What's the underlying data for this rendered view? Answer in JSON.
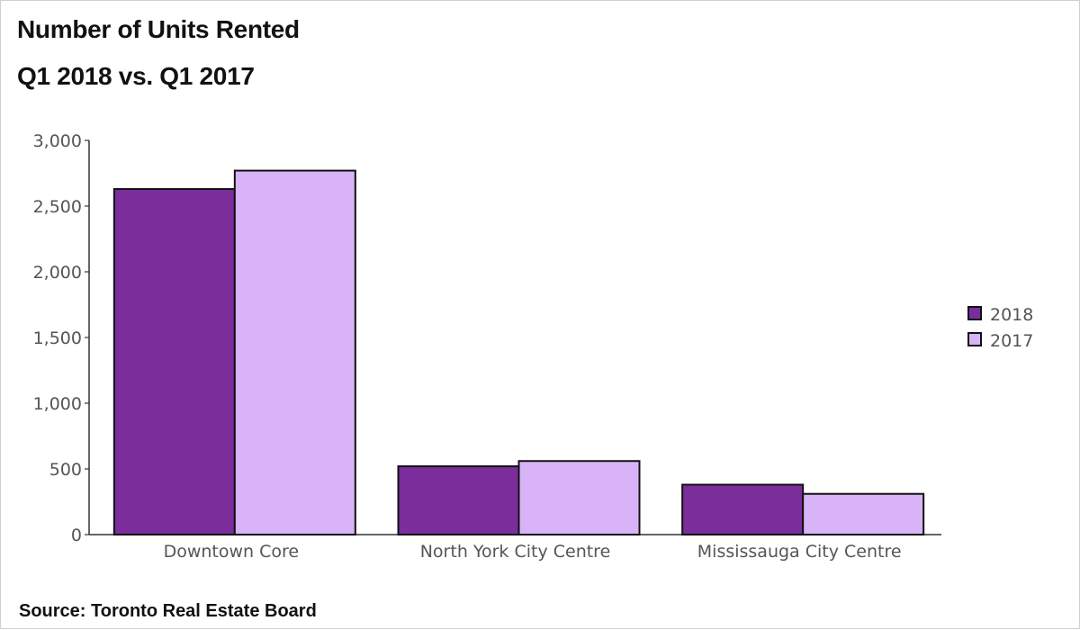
{
  "title_line_1": "Number of Units Rented",
  "title_line_2": "Q1 2018 vs. Q1 2017",
  "source": "Source: Toronto Real Estate Board",
  "colors": {
    "series_2018": "#7b2d9c",
    "series_2017": "#d9b3f7",
    "axis": "#333333",
    "bar_stroke": "#111111"
  },
  "chart_data": {
    "type": "bar",
    "title": "Number of Units Rented Q1 2018 vs. Q1 2017",
    "xlabel": "",
    "ylabel": "",
    "categories": [
      "Downtown Core",
      "North York City Centre",
      "Mississauga City Centre"
    ],
    "series": [
      {
        "name": "2018",
        "values": [
          2630,
          520,
          380
        ]
      },
      {
        "name": "2017",
        "values": [
          2770,
          560,
          310
        ]
      }
    ],
    "ylim": [
      0,
      3000
    ],
    "yticks": [
      0,
      500,
      1000,
      1500,
      2000,
      2500,
      3000
    ],
    "ytick_labels": [
      "0",
      "500",
      "1,000",
      "1,500",
      "2,000",
      "2,500",
      "3,000"
    ],
    "grid": false,
    "legend_position": "right"
  }
}
